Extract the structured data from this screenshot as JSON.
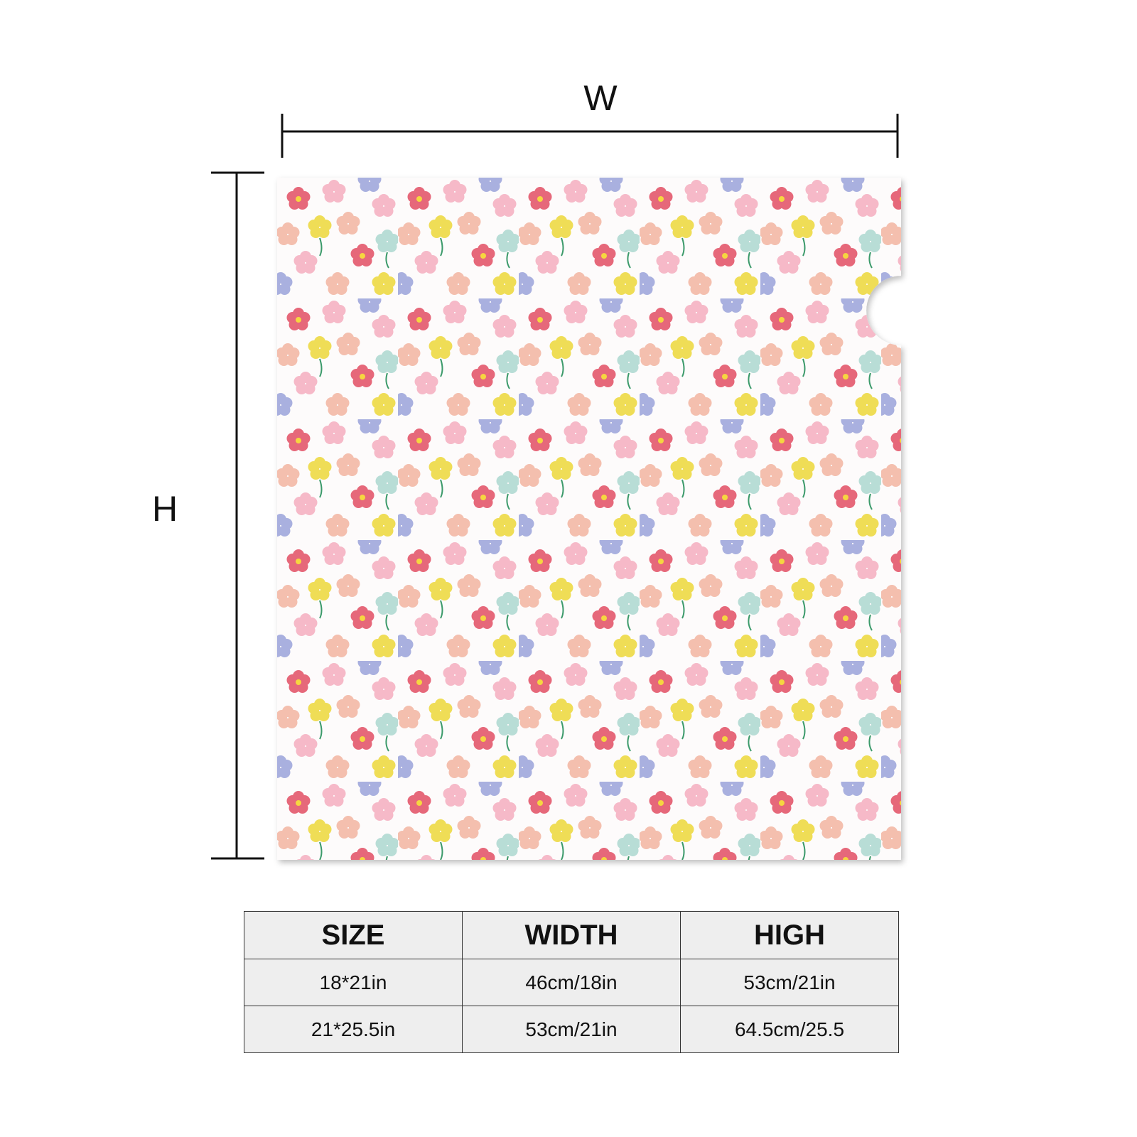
{
  "dimensions": {
    "width": "W",
    "height": "H"
  },
  "table": {
    "header": [
      "SIZE",
      "WIDTH",
      "HIGH"
    ],
    "rows": [
      [
        "18*21in",
        "46cm/18in",
        "53cm/21in"
      ],
      [
        "21*25.5in",
        "53cm/21in",
        "64.5cm/25.5"
      ]
    ]
  }
}
